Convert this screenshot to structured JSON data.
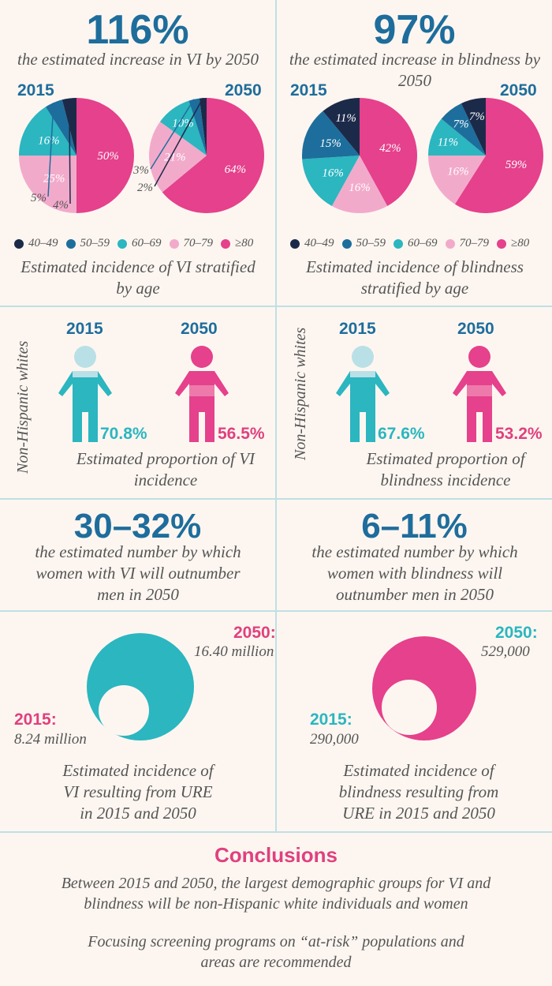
{
  "colors": {
    "c4049": "#1c2a4a",
    "c5059": "#1d6e9c",
    "c6069": "#2bb6c0",
    "c7079": "#f2aacb",
    "c80": "#e5418c",
    "blue": "#1e6d9c",
    "pink": "#e0407f",
    "teal": "#2bb6c0"
  },
  "vi": {
    "headline": "116%",
    "caption": "the estimated increase in VI by 2050",
    "year_a": "2015",
    "year_b": "2050",
    "legend_caption": "Estimated incidence of VI stratified by age"
  },
  "blindness": {
    "headline": "97%",
    "caption": "the estimated increase in blindness by 2050",
    "year_a": "2015",
    "year_b": "2050",
    "legend_caption": "Estimated incidence of blindness stratified by age"
  },
  "legend": [
    "40–49",
    "50–59",
    "60–69",
    "70–79",
    "≥80"
  ],
  "chart_data": [
    {
      "type": "pie",
      "title": "VI 2015",
      "categories": [
        "40–49",
        "50–59",
        "60–69",
        "70–79",
        "≥80"
      ],
      "values": [
        4,
        5,
        16,
        25,
        50
      ],
      "labels": [
        "4%",
        "5%",
        "16%",
        "25%",
        "50%"
      ]
    },
    {
      "type": "pie",
      "title": "VI 2050",
      "categories": [
        "40–49",
        "50–59",
        "60–69",
        "70–79",
        "≥80"
      ],
      "values": [
        2,
        3,
        10,
        21,
        64
      ],
      "labels": [
        "2%",
        "3%",
        "10%",
        "21%",
        "64%"
      ]
    },
    {
      "type": "pie",
      "title": "Blindness 2015",
      "categories": [
        "40–49",
        "50–59",
        "60–69",
        "70–79",
        "≥80"
      ],
      "values": [
        11,
        15,
        16,
        16,
        42
      ],
      "labels": [
        "11%",
        "15%",
        "16%",
        "16%",
        "42%"
      ]
    },
    {
      "type": "pie",
      "title": "Blindness 2050",
      "categories": [
        "40–49",
        "50–59",
        "60–69",
        "70–79",
        "≥80"
      ],
      "values": [
        7,
        7,
        11,
        16,
        59
      ],
      "labels": [
        "7%",
        "7%",
        "11%",
        "16%",
        "59%"
      ]
    }
  ],
  "nhw": {
    "side_label": "Non-Hispanic whites",
    "vi": {
      "year_a": "2015",
      "year_b": "2050",
      "val_a": "70.8%",
      "val_b": "56.5%",
      "caption": "Estimated proportion of VI incidence"
    },
    "blind": {
      "year_a": "2015",
      "year_b": "2050",
      "val_a": "67.6%",
      "val_b": "53.2%",
      "caption": "Estimated proportion of blindness incidence"
    }
  },
  "women": {
    "vi": {
      "headline": "30–32%",
      "caption": "the estimated number by which women with VI will outnumber men in 2050"
    },
    "blind": {
      "headline": "6–11%",
      "caption": "the estimated number by which women with blindness will outnumber men in 2050"
    }
  },
  "ure": {
    "vi": {
      "label_a": "2015:",
      "val_a": "8.24 million",
      "label_b": "2050:",
      "val_b": "16.40 million",
      "caption": "Estimated incidence of VI resulting from URE in 2015 and 2050"
    },
    "blind": {
      "label_a": "2015:",
      "val_a": "290,000",
      "label_b": "2050:",
      "val_b": "529,000",
      "caption": "Estimated incidence of blindness resulting from URE in 2015 and 2050"
    }
  },
  "conclusions": {
    "title": "Conclusions",
    "p1": "Between 2015 and 2050, the largest demographic groups for VI and blindness will be non-Hispanic white individuals and women",
    "p2": "Focusing screening programs on “at-risk” populations and areas are recommended"
  }
}
